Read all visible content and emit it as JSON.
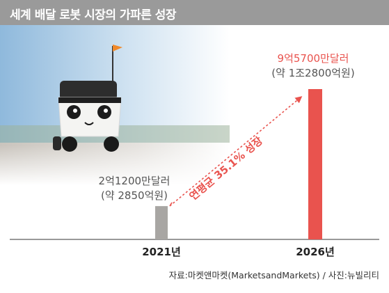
{
  "title": "세계 배달 로봇 시장의 가파른 성장",
  "chart_data": {
    "type": "bar",
    "categories": [
      "2021년",
      "2026년"
    ],
    "values": [
      2.12,
      9.57
    ],
    "unit_note": "억 달러",
    "data_labels": [
      {
        "line1": "2억1200만달러",
        "line2": "(약 2850억원)"
      },
      {
        "line1": "9억5700만달러",
        "line2": "(약 1조2800억원)"
      }
    ],
    "annotation": "연평균 35.1% 성장",
    "source": "자료:마켓앤마켓(MarketsandMarkets) / 사진:뉴빌리티",
    "colors": {
      "bar_2021": "#a8a6a3",
      "bar_2026": "#e9534e",
      "highlight_text": "#e9534e",
      "titlebar": "#9a9a9a"
    }
  }
}
